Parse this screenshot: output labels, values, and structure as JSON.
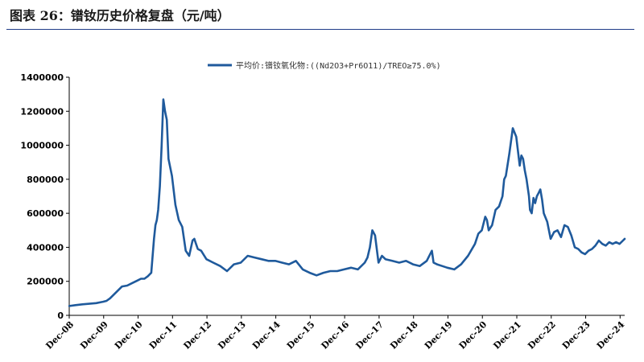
{
  "figure": {
    "title": "图表 26：镨钕历史价格复盘（元/吨）"
  },
  "chart_data": {
    "type": "line",
    "title": "图表 26：镨钕历史价格复盘（元/吨）",
    "xlabel": "",
    "ylabel": "",
    "ylim": [
      0,
      1400000
    ],
    "yticks": [
      0,
      200000,
      400000,
      600000,
      800000,
      1000000,
      1200000,
      1400000
    ],
    "ytick_labels": [
      "0",
      "200000",
      "400000",
      "600000",
      "800000",
      "1000000",
      "1200000",
      "1400000"
    ],
    "xlim": [
      2008.917,
      2025.05
    ],
    "xticks": [
      2008.917,
      2009.917,
      2010.917,
      2011.917,
      2012.917,
      2013.917,
      2014.917,
      2015.917,
      2016.917,
      2017.917,
      2018.917,
      2019.917,
      2020.917,
      2021.917,
      2022.917,
      2023.917,
      2024.917
    ],
    "xtick_labels": [
      "Dec-08",
      "Dec-09",
      "Dec-10",
      "Dec-11",
      "Dec-12",
      "Dec-13",
      "Dec-14",
      "Dec-15",
      "Dec-16",
      "Dec-17",
      "Dec-18",
      "Dec-19",
      "Dec-20",
      "Dec-21",
      "Dec-22",
      "Dec-23",
      "Dec-24"
    ],
    "grid": false,
    "legend_position": "top-center",
    "series": [
      {
        "name": "平均价:镨钕氧化物:((Nd2O3+Pr6O11)/TREO≥75.0%)",
        "color": "#1f5a9c",
        "x": [
          2008.92,
          2009.1,
          2009.3,
          2009.5,
          2009.7,
          2009.9,
          2010.0,
          2010.1,
          2010.3,
          2010.45,
          2010.6,
          2010.75,
          2010.9,
          2011.0,
          2011.1,
          2011.2,
          2011.3,
          2011.38,
          2011.42,
          2011.46,
          2011.5,
          2011.55,
          2011.6,
          2011.65,
          2011.7,
          2011.75,
          2011.8,
          2011.9,
          2012.0,
          2012.1,
          2012.2,
          2012.3,
          2012.4,
          2012.5,
          2012.55,
          2012.6,
          2012.65,
          2012.75,
          2012.9,
          2013.1,
          2013.3,
          2013.5,
          2013.7,
          2013.9,
          2014.1,
          2014.3,
          2014.5,
          2014.7,
          2014.9,
          2015.1,
          2015.3,
          2015.5,
          2015.7,
          2015.9,
          2016.1,
          2016.3,
          2016.5,
          2016.7,
          2016.9,
          2017.1,
          2017.3,
          2017.5,
          2017.58,
          2017.65,
          2017.72,
          2017.8,
          2017.9,
          2018.0,
          2018.1,
          2018.3,
          2018.5,
          2018.7,
          2018.9,
          2019.1,
          2019.3,
          2019.45,
          2019.5,
          2019.6,
          2019.75,
          2019.9,
          2020.1,
          2020.3,
          2020.5,
          2020.7,
          2020.8,
          2020.9,
          2021.0,
          2021.05,
          2021.1,
          2021.2,
          2021.3,
          2021.4,
          2021.5,
          2021.55,
          2021.6,
          2021.7,
          2021.8,
          2021.9,
          2022.0,
          2022.05,
          2022.1,
          2022.15,
          2022.2,
          2022.27,
          2022.3,
          2022.35,
          2022.4,
          2022.45,
          2022.5,
          2022.55,
          2022.6,
          2022.65,
          2022.7,
          2022.8,
          2022.9,
          2023.0,
          2023.1,
          2023.2,
          2023.3,
          2023.4,
          2023.5,
          2023.6,
          2023.7,
          2023.8,
          2023.9,
          2024.0,
          2024.1,
          2024.2,
          2024.3,
          2024.4,
          2024.5,
          2024.6,
          2024.7,
          2024.8,
          2024.9,
          2025.0,
          2025.05
        ],
        "y": [
          55000,
          60000,
          65000,
          68000,
          72000,
          80000,
          85000,
          100000,
          140000,
          170000,
          175000,
          190000,
          205000,
          215000,
          215000,
          230000,
          250000,
          450000,
          530000,
          560000,
          620000,
          760000,
          1000000,
          1270000,
          1200000,
          1150000,
          920000,
          820000,
          650000,
          560000,
          520000,
          380000,
          350000,
          440000,
          450000,
          420000,
          390000,
          380000,
          330000,
          310000,
          290000,
          260000,
          300000,
          310000,
          350000,
          340000,
          330000,
          320000,
          320000,
          310000,
          300000,
          320000,
          270000,
          250000,
          235000,
          250000,
          260000,
          260000,
          270000,
          280000,
          270000,
          310000,
          340000,
          400000,
          500000,
          470000,
          310000,
          350000,
          330000,
          320000,
          310000,
          320000,
          300000,
          290000,
          320000,
          380000,
          310000,
          300000,
          290000,
          280000,
          270000,
          300000,
          350000,
          420000,
          480000,
          500000,
          580000,
          560000,
          500000,
          530000,
          620000,
          640000,
          700000,
          800000,
          820000,
          950000,
          1100000,
          1050000,
          880000,
          940000,
          920000,
          850000,
          800000,
          700000,
          620000,
          600000,
          690000,
          660000,
          700000,
          720000,
          740000,
          680000,
          600000,
          550000,
          450000,
          490000,
          500000,
          460000,
          530000,
          520000,
          470000,
          400000,
          390000,
          370000,
          360000,
          380000,
          390000,
          410000,
          440000,
          420000,
          410000,
          430000,
          420000,
          430000,
          420000,
          440000,
          450000
        ]
      }
    ]
  }
}
